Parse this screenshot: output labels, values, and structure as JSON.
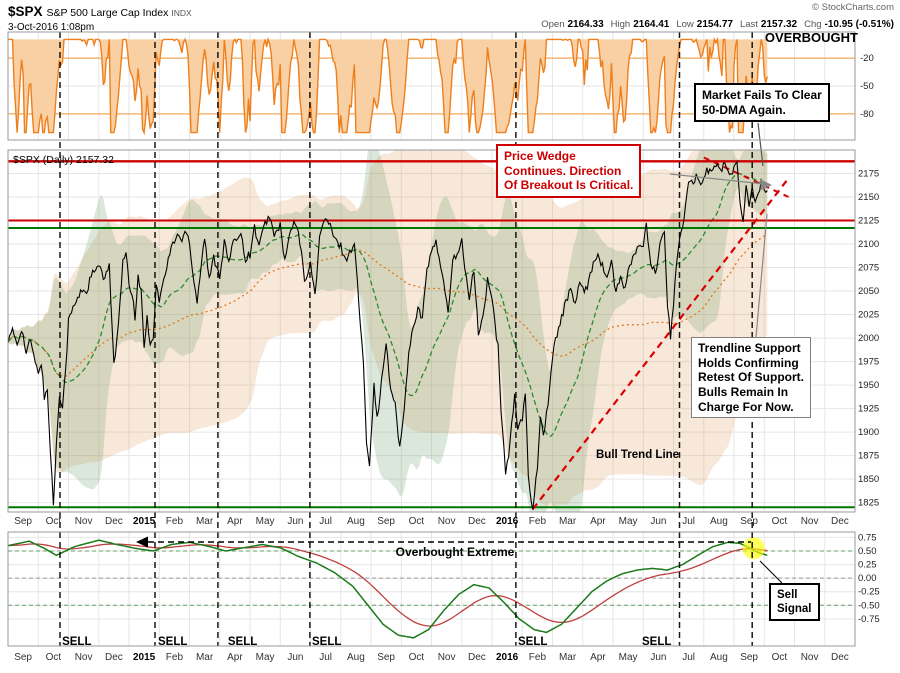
{
  "header": {
    "symbol": "$SPX",
    "name": "S&P 500 Large Cap Index",
    "exchange": "INDX",
    "datetime": "3-Oct-2016 1:08pm",
    "copyright": "© StockCharts.com",
    "quote": {
      "open_label": "Open",
      "open": "2164.33",
      "high_label": "High",
      "high": "2164.41",
      "low_label": "Low",
      "low": "2154.77",
      "last_label": "Last",
      "last": "2157.32",
      "chg_label": "Chg",
      "chg": "-10.95 (-0.51%)"
    }
  },
  "annotations": {
    "market_fails": {
      "lines": [
        "Market Fails To Clear",
        "50-DMA Again."
      ]
    },
    "price_wedge": {
      "lines": [
        "Price Wedge",
        "Continues. Direction",
        "Of Breakout Is Critical."
      ]
    },
    "trendline_support": {
      "lines": [
        "Trendline Support",
        "Holds Confirming",
        "Retest Of Support.",
        "Bulls Remain In",
        "Charge For Now."
      ]
    },
    "sell_signal": {
      "lines": [
        "Sell",
        "Signal"
      ]
    }
  },
  "colors": {
    "price": "#000000",
    "resistance_red": "#cc0000",
    "support_green": "#007700",
    "trendline_red": "#dd0000",
    "osc_orange_line": "#ee7f1d",
    "osc_orange_fill": "#f9d0a4",
    "osc_orange_ref": "#f2a85c",
    "osc_green": "#1a7a1a",
    "osc_red": "#c04040",
    "ma50_green": "#2d8a2d",
    "ma200_orange": "#e07820",
    "band_tan": "rgba(222,150,85,0.22)",
    "band_green": "rgba(110,160,110,0.25)",
    "sell_circle": "#ffff00",
    "grid": "#e6e6e6",
    "panel_border": "#999999",
    "dashed_vline": "#000000"
  },
  "chart_data": {
    "type": "line",
    "title": "$SPX S&P 500 Large Cap Index - daily price with overbought oscillator (top) and composite buy/sell oscillator (bottom)",
    "x_axis": {
      "months": [
        "Sep",
        "Oct",
        "Nov",
        "Dec",
        "2015",
        "Feb",
        "Mar",
        "Apr",
        "May",
        "Jun",
        "Jul",
        "Aug",
        "Sep",
        "Oct",
        "Nov",
        "Dec",
        "2016",
        "Feb",
        "Mar",
        "Apr",
        "May",
        "Jun",
        "Jul",
        "Aug",
        "Sep",
        "Oct",
        "Nov",
        "Dec"
      ],
      "bold": [
        "2015",
        "2016"
      ]
    },
    "vlines_dashed": [
      1.72,
      4.86,
      6.94,
      9.98,
      16.79,
      22.2,
      24.6
    ],
    "top_osc": {
      "label": "OVERBOUGHT",
      "ylim": [
        8,
        -108
      ],
      "yticks": [
        -20,
        -50,
        -80
      ],
      "ref_lines_orange": [
        -20,
        -80
      ],
      "ref_line_gray": -50,
      "window": 14
    },
    "main": {
      "legend": "$SPX (Daily) 2157.32",
      "ylim": [
        1815,
        2200
      ],
      "yticks": [
        2175,
        2150,
        2125,
        2100,
        2075,
        2050,
        2025,
        2000,
        1975,
        1950,
        1925,
        1900,
        1875,
        1850,
        1825
      ],
      "hlines": [
        {
          "y": 2188,
          "color": "#cc0000",
          "w": 2.4
        },
        {
          "y": 2125,
          "color": "#cc0000",
          "w": 2
        },
        {
          "y": 2117,
          "color": "#007700",
          "w": 2
        },
        {
          "y": 1820,
          "color": "#007700",
          "w": 2
        }
      ],
      "trendline": {
        "from": [
          17.35,
          1818
        ],
        "to": [
          25.8,
          2170
        ],
        "label": "Bull Trend Line"
      },
      "wedge_upper": {
        "from": [
          23.0,
          2192
        ],
        "to": [
          25.8,
          2150
        ]
      },
      "price": [
        [
          0,
          1996
        ],
        [
          0.15,
          2007
        ],
        [
          0.3,
          1994
        ],
        [
          0.45,
          2011
        ],
        [
          0.6,
          1984
        ],
        [
          0.75,
          1998
        ],
        [
          0.9,
          1972
        ],
        [
          1,
          1964
        ],
        [
          1.1,
          1975
        ],
        [
          1.2,
          1935
        ],
        [
          1.3,
          1948
        ],
        [
          1.4,
          1878
        ],
        [
          1.5,
          1824
        ],
        [
          1.6,
          1886
        ],
        [
          1.7,
          1941
        ],
        [
          1.8,
          1929
        ],
        [
          1.9,
          1964
        ],
        [
          2,
          2018
        ],
        [
          2.15,
          2032
        ],
        [
          2.3,
          2041
        ],
        [
          2.45,
          2052
        ],
        [
          2.6,
          2049
        ],
        [
          2.75,
          2067
        ],
        [
          2.9,
          2072
        ],
        [
          3.05,
          2075
        ],
        [
          3.2,
          2060
        ],
        [
          3.35,
          2079
        ],
        [
          3.5,
          1972
        ],
        [
          3.65,
          2012
        ],
        [
          3.8,
          2081
        ],
        [
          3.9,
          2088
        ],
        [
          4,
          2058
        ],
        [
          4.1,
          2046
        ],
        [
          4.2,
          2023
        ],
        [
          4.3,
          2063
        ],
        [
          4.4,
          2051
        ],
        [
          4.5,
          1992
        ],
        [
          4.6,
          2021
        ],
        [
          4.7,
          1995
        ],
        [
          4.8,
          2002
        ],
        [
          4.9,
          2055
        ],
        [
          5,
          2041
        ],
        [
          5.2,
          2068
        ],
        [
          5.4,
          2097
        ],
        [
          5.6,
          2110
        ],
        [
          5.75,
          2104
        ],
        [
          5.9,
          2115
        ],
        [
          6,
          2104
        ],
        [
          6.1,
          2071
        ],
        [
          6.25,
          2040
        ],
        [
          6.4,
          2081
        ],
        [
          6.5,
          2108
        ],
        [
          6.65,
          2061
        ],
        [
          6.8,
          2086
        ],
        [
          7,
          2067
        ],
        [
          7.15,
          2102
        ],
        [
          7.3,
          2081
        ],
        [
          7.5,
          2106
        ],
        [
          7.7,
          2112
        ],
        [
          7.85,
          2085
        ],
        [
          8,
          2089
        ],
        [
          8.15,
          2118
        ],
        [
          8.3,
          2098
        ],
        [
          8.5,
          2121
        ],
        [
          8.65,
          2131
        ],
        [
          8.8,
          2107
        ],
        [
          9,
          2121
        ],
        [
          9.15,
          2080
        ],
        [
          9.3,
          2109
        ],
        [
          9.5,
          2124
        ],
        [
          9.65,
          2102
        ],
        [
          9.8,
          2063
        ],
        [
          10,
          2077
        ],
        [
          10.15,
          2046
        ],
        [
          10.3,
          2108
        ],
        [
          10.5,
          2128
        ],
        [
          10.65,
          2119
        ],
        [
          10.8,
          2104
        ],
        [
          11,
          2098
        ],
        [
          11.15,
          2083
        ],
        [
          11.3,
          2091
        ],
        [
          11.45,
          2102
        ],
        [
          11.6,
          2036
        ],
        [
          11.75,
          1971
        ],
        [
          11.85,
          1893
        ],
        [
          11.95,
          1868
        ],
        [
          12.1,
          1949
        ],
        [
          12.2,
          1914
        ],
        [
          12.35,
          1953
        ],
        [
          12.5,
          1995
        ],
        [
          12.65,
          1942
        ],
        [
          12.8,
          1932
        ],
        [
          12.95,
          1882
        ],
        [
          13.1,
          1924
        ],
        [
          13.25,
          1987
        ],
        [
          13.4,
          2012
        ],
        [
          13.55,
          2033
        ],
        [
          13.7,
          2019
        ],
        [
          13.85,
          2075
        ],
        [
          14,
          2090
        ],
        [
          14.15,
          2102
        ],
        [
          14.3,
          2075
        ],
        [
          14.45,
          2050
        ],
        [
          14.55,
          2023
        ],
        [
          14.7,
          2086
        ],
        [
          14.85,
          2090
        ],
        [
          15,
          2102
        ],
        [
          15.1,
          2077
        ],
        [
          15.25,
          2040
        ],
        [
          15.4,
          2073
        ],
        [
          15.55,
          2005
        ],
        [
          15.7,
          2021
        ],
        [
          15.85,
          2061
        ],
        [
          16,
          2044
        ],
        [
          16.1,
          2012
        ],
        [
          16.2,
          1990
        ],
        [
          16.3,
          1921
        ],
        [
          16.45,
          1859
        ],
        [
          16.55,
          1877
        ],
        [
          16.65,
          1906
        ],
        [
          16.75,
          1940
        ],
        [
          16.85,
          1903
        ],
        [
          17,
          1913
        ],
        [
          17.1,
          1940
        ],
        [
          17.2,
          1853
        ],
        [
          17.35,
          1818
        ],
        [
          17.5,
          1865
        ],
        [
          17.6,
          1918
        ],
        [
          17.7,
          1895
        ],
        [
          17.85,
          1932
        ],
        [
          18,
          1979
        ],
        [
          18.15,
          2005
        ],
        [
          18.3,
          2022
        ],
        [
          18.45,
          2040
        ],
        [
          18.6,
          2050
        ],
        [
          18.75,
          2037
        ],
        [
          18.9,
          2060
        ],
        [
          19.05,
          2045
        ],
        [
          19.2,
          2062
        ],
        [
          19.35,
          2080
        ],
        [
          19.5,
          2091
        ],
        [
          19.65,
          2076
        ],
        [
          19.8,
          2065
        ],
        [
          19.95,
          2081
        ],
        [
          20.1,
          2047
        ],
        [
          20.25,
          2065
        ],
        [
          20.4,
          2052
        ],
        [
          20.55,
          2076
        ],
        [
          20.7,
          2090
        ],
        [
          20.85,
          2096
        ],
        [
          21,
          2099
        ],
        [
          21.1,
          2119
        ],
        [
          21.25,
          2075
        ],
        [
          21.4,
          2071
        ],
        [
          21.55,
          2096
        ],
        [
          21.7,
          2113
        ],
        [
          21.8,
          2037
        ],
        [
          21.9,
          2001
        ],
        [
          22,
          2038
        ],
        [
          22.1,
          2079
        ],
        [
          22.2,
          2102
        ],
        [
          22.35,
          2130
        ],
        [
          22.5,
          2162
        ],
        [
          22.65,
          2166
        ],
        [
          22.8,
          2173
        ],
        [
          22.95,
          2164
        ],
        [
          23.1,
          2180
        ],
        [
          23.25,
          2176
        ],
        [
          23.4,
          2184
        ],
        [
          23.55,
          2178
        ],
        [
          23.7,
          2187
        ],
        [
          23.85,
          2171
        ],
        [
          24,
          2180
        ],
        [
          24.1,
          2186
        ],
        [
          24.2,
          2146
        ],
        [
          24.3,
          2128
        ],
        [
          24.4,
          2159
        ],
        [
          24.5,
          2139
        ],
        [
          24.6,
          2163
        ],
        [
          24.7,
          2144
        ],
        [
          24.8,
          2151
        ],
        [
          24.9,
          2168
        ],
        [
          25,
          2161
        ],
        [
          25.1,
          2157
        ]
      ]
    },
    "bottom_osc": {
      "ylim": [
        0.85,
        -1.25
      ],
      "ytick_values": [
        0.75,
        0.5,
        0.25,
        0,
        -0.25,
        -0.5,
        -0.75
      ],
      "ytick_labels": [
        "0.75",
        "0.50",
        "0.25",
        "0.00",
        "-0.25",
        "-0.50",
        "-0.75"
      ],
      "dashed_green_refs": [
        0.5,
        -0.5
      ],
      "dashed_gray_ref": 0,
      "green": [
        [
          0,
          0.6
        ],
        [
          0.7,
          0.68
        ],
        [
          1.2,
          0.55
        ],
        [
          1.6,
          0.42
        ],
        [
          2.2,
          0.58
        ],
        [
          3,
          0.7
        ],
        [
          3.6,
          0.62
        ],
        [
          4.2,
          0.55
        ],
        [
          4.8,
          0.5
        ],
        [
          5.4,
          0.62
        ],
        [
          6,
          0.66
        ],
        [
          6.6,
          0.59
        ],
        [
          7.2,
          0.5
        ],
        [
          7.8,
          0.56
        ],
        [
          8.4,
          0.62
        ],
        [
          9,
          0.56
        ],
        [
          9.6,
          0.4
        ],
        [
          10.2,
          0.28
        ],
        [
          10.8,
          0.1
        ],
        [
          11.4,
          -0.15
        ],
        [
          11.9,
          -0.5
        ],
        [
          12.4,
          -0.85
        ],
        [
          12.9,
          -1.05
        ],
        [
          13.4,
          -1.1
        ],
        [
          13.9,
          -0.95
        ],
        [
          14.4,
          -0.6
        ],
        [
          14.9,
          -0.3
        ],
        [
          15.4,
          -0.12
        ],
        [
          15.9,
          -0.18
        ],
        [
          16.4,
          -0.45
        ],
        [
          16.9,
          -0.75
        ],
        [
          17.4,
          -0.95
        ],
        [
          17.8,
          -1
        ],
        [
          18.3,
          -0.85
        ],
        [
          18.8,
          -0.55
        ],
        [
          19.3,
          -0.25
        ],
        [
          19.8,
          -0.05
        ],
        [
          20.3,
          0.08
        ],
        [
          20.8,
          0.15
        ],
        [
          21.3,
          0.18
        ],
        [
          21.8,
          0.15
        ],
        [
          22.3,
          0.25
        ],
        [
          22.8,
          0.42
        ],
        [
          23.3,
          0.58
        ],
        [
          23.8,
          0.66
        ],
        [
          24.2,
          0.64
        ],
        [
          24.5,
          0.56
        ],
        [
          24.8,
          0.47
        ],
        [
          25.1,
          0.42
        ]
      ],
      "overbought_line": {
        "y": 0.66,
        "x_from": 4.4,
        "x_to": 24.55,
        "label": "Overbought Extreme"
      },
      "sell_labels": {
        "text": "SELL",
        "positions": [
          1.79,
          4.96,
          7.27,
          10.05,
          16.86,
          20.96
        ]
      },
      "sell_marker": {
        "x": 24.65,
        "y": 0.55,
        "r": 11
      }
    }
  }
}
